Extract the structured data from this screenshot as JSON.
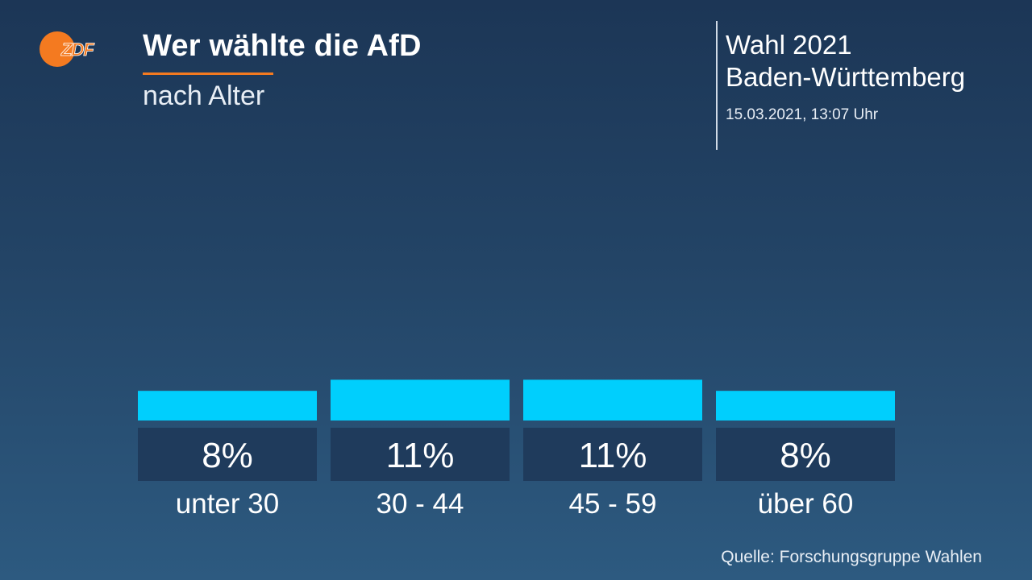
{
  "header": {
    "title": "Wer wählte die AfD",
    "subtitle": "nach Alter"
  },
  "logo": {
    "text": "ZDF",
    "accent": "#f47a20"
  },
  "election": {
    "line1": "Wahl 2021",
    "line2": "Baden-Württemberg",
    "timestamp": "15.03.2021, 13:07 Uhr"
  },
  "colors": {
    "bar": "#00cffd",
    "label_box": "#1f3b5c",
    "accent": "#f47a20"
  },
  "chart_data": {
    "type": "bar",
    "categories": [
      "unter 30",
      "30 - 44",
      "45 - 59",
      "über 60"
    ],
    "values": [
      8,
      11,
      11,
      8
    ],
    "value_labels": [
      "8%",
      "11%",
      "11%",
      "8%"
    ],
    "unit": "%",
    "title": "Wer wählte die AfD",
    "subtitle": "nach Alter",
    "grid": false,
    "legend": "none"
  },
  "footer": {
    "source": "Quelle: Forschungsgruppe Wahlen"
  }
}
